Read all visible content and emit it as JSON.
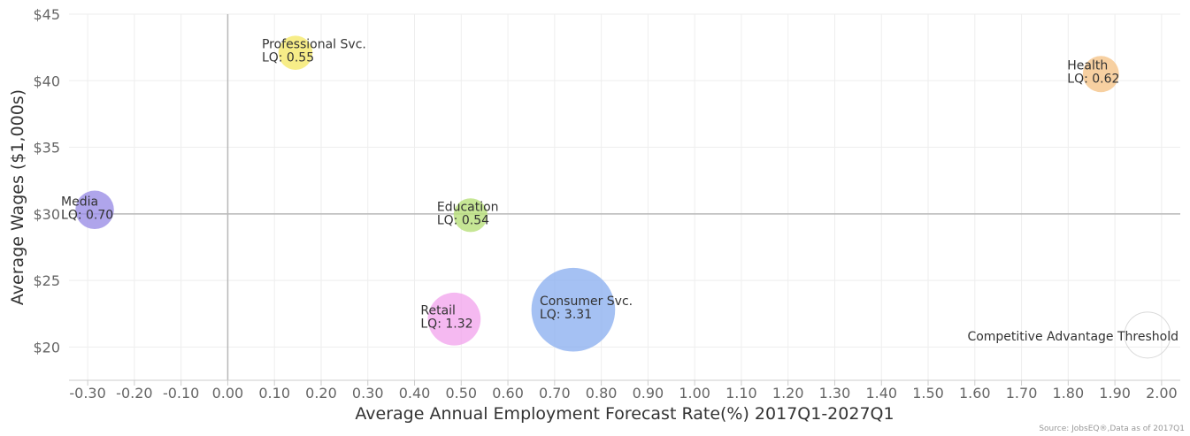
{
  "chart_data": {
    "type": "bubble",
    "xlabel": "Average Annual Employment Forecast Rate(%) 2017Q1-2027Q1",
    "ylabel": "Average Wages ($1,000s)",
    "xlim": [
      -0.34,
      2.04
    ],
    "ylim": [
      17.5,
      45
    ],
    "x_ticks": [
      -0.3,
      -0.2,
      -0.1,
      0.0,
      0.1,
      0.2,
      0.3,
      0.4,
      0.5,
      0.6,
      0.7,
      0.8,
      0.9,
      1.0,
      1.1,
      1.2,
      1.3,
      1.4,
      1.5,
      1.6,
      1.7,
      1.8,
      1.9,
      2.0
    ],
    "x_tick_labels": [
      "-0.30",
      "-0.20",
      "-0.10",
      "0.00",
      "0.10",
      "0.20",
      "0.30",
      "0.40",
      "0.50",
      "0.60",
      "0.70",
      "0.80",
      "0.90",
      "1.00",
      "1.10",
      "1.20",
      "1.30",
      "1.40",
      "1.50",
      "1.60",
      "1.70",
      "1.80",
      "1.90",
      "2.00"
    ],
    "y_ticks": [
      20,
      25,
      30,
      35,
      40,
      45
    ],
    "y_tick_labels": [
      "$20",
      "$25",
      "$30",
      "$35",
      "$40",
      "$45"
    ],
    "grid": true,
    "reference_lines": {
      "x": 0.0,
      "y": 30
    },
    "points": [
      {
        "name": "Professional Svc.",
        "lq_label": "LQ: 0.55",
        "x": 0.145,
        "y": 42.1,
        "lq": 0.55,
        "color": "#f5e86a"
      },
      {
        "name": "Health",
        "lq_label": "LQ: 0.62",
        "x": 1.87,
        "y": 40.5,
        "lq": 0.62,
        "color": "#f5c48a"
      },
      {
        "name": "Media",
        "lq_label": "LQ: 0.70",
        "x": -0.285,
        "y": 30.3,
        "lq": 0.7,
        "color": "#9b8fe6"
      },
      {
        "name": "Education",
        "lq_label": "LQ: 0.54",
        "x": 0.52,
        "y": 29.9,
        "lq": 0.54,
        "color": "#b8e07a"
      },
      {
        "name": "Retail",
        "lq_label": "LQ: 1.32",
        "x": 0.485,
        "y": 22.1,
        "lq": 1.32,
        "color": "#f2a8ee"
      },
      {
        "name": "Consumer Svc.",
        "lq_label": "LQ: 3.31",
        "x": 0.74,
        "y": 22.8,
        "lq": 3.31,
        "color": "#8fb1f0"
      }
    ],
    "threshold_marker": {
      "label": "Competitive Advantage Threshold",
      "x": 1.97,
      "y": 20.9,
      "lq": 1.0
    }
  },
  "source_text": "Source: JobsEQ®,Data as of 2017Q1"
}
